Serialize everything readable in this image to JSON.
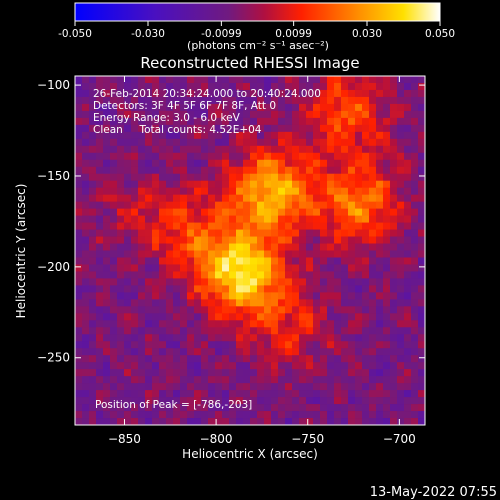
{
  "colorbar": {
    "tick_labels": [
      "-0.050",
      "-0.030",
      "-0.0099",
      "0.0099",
      "0.030",
      "0.050"
    ],
    "tick_values": [
      -0.05,
      -0.03,
      -0.0099,
      0.0099,
      0.03,
      0.05
    ],
    "range": [
      -0.05,
      0.05
    ],
    "units_label": "(photons cm⁻² s⁻¹ asec⁻²)",
    "colors": [
      "#0000ff",
      "#5a1a9a",
      "#7a1060",
      "#ff1a00",
      "#ff8000",
      "#ffd000",
      "#ffffff"
    ]
  },
  "chart_data": {
    "type": "heatmap",
    "title": "Reconstructed RHESSI Image",
    "xlabel": "Heliocentric X (arcsec)",
    "ylabel": "Heliocentric Y (arcsec)",
    "xlim": [
      -877,
      -686
    ],
    "ylim": [
      -287,
      -95
    ],
    "x_ticks": [
      -850,
      -800,
      -750,
      -700
    ],
    "x_tick_labels": [
      "−850",
      "−800",
      "−750",
      "−700"
    ],
    "y_ticks": [
      -100,
      -150,
      -200,
      -250
    ],
    "y_tick_labels": [
      "−100",
      "−150",
      "−200",
      "−250"
    ],
    "sources": [
      {
        "x": -786,
        "y": -203,
        "peak": 0.05
      },
      {
        "x": -770,
        "y": -158,
        "peak": 0.042
      },
      {
        "x": -722,
        "y": -165,
        "peak": 0.032
      },
      {
        "x": -728,
        "y": -115,
        "peak": 0.025
      },
      {
        "x": -815,
        "y": -180,
        "peak": 0.02
      },
      {
        "x": -760,
        "y": -233,
        "peak": 0.018
      },
      {
        "x": -845,
        "y": -170,
        "peak": 0.01
      }
    ],
    "info_lines": [
      "26-Feb-2014 20:34:24.000 to 20:40:24.000",
      "Detectors: 3F 4F 5F 6F 7F 8F, Att 0",
      "Energy Range: 3.0 - 6.0 keV",
      "Clean     Total counts: 4.52E+04"
    ],
    "peak_label": "Position of Peak = [-786,-203]"
  },
  "footer_date": "13-May-2022 07:55"
}
